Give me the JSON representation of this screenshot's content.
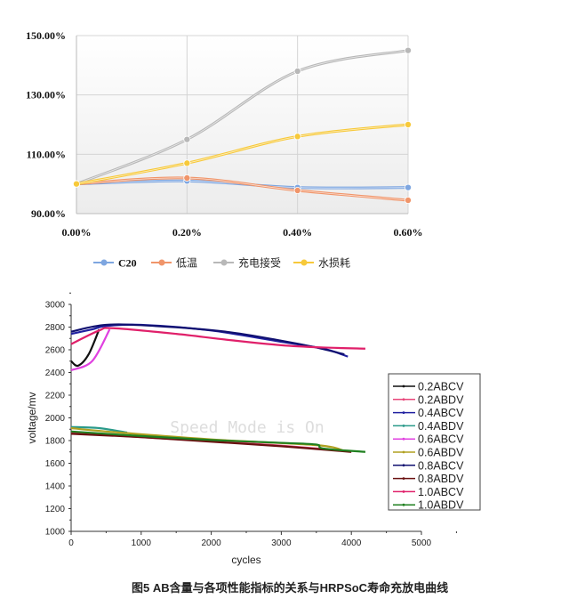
{
  "chart_data": [
    {
      "type": "line",
      "categories": [
        "0.00%",
        "0.20%",
        "0.40%",
        "0.60%"
      ],
      "yticks": [
        "90.00%",
        "110.00%",
        "130.00%",
        "150.00%"
      ],
      "ylim": [
        90,
        150
      ],
      "grid": true,
      "legend_position": "bottom",
      "series": [
        {
          "name": "C20",
          "color": "#7ea6e0",
          "values": [
            100,
            101,
            98.8,
            98.8
          ]
        },
        {
          "name": "低温",
          "color": "#f0956a",
          "values": [
            100,
            102,
            97.8,
            94.5
          ]
        },
        {
          "name": "充电接受",
          "color": "#b8b8b8",
          "values": [
            100,
            115,
            138,
            145
          ]
        },
        {
          "name": "水损耗",
          "color": "#f7c93a",
          "values": [
            100,
            107,
            116,
            120
          ]
        }
      ]
    },
    {
      "type": "line",
      "xlabel": "cycles",
      "ylabel": "voltage/mv",
      "xlim": [
        0,
        5000
      ],
      "ylim": [
        1000,
        3000
      ],
      "xticks": [
        "0",
        "1000",
        "2000",
        "3000",
        "4000",
        "5000"
      ],
      "yticks": [
        "1000",
        "1200",
        "1400",
        "1600",
        "1800",
        "2000",
        "2200",
        "2400",
        "2600",
        "2800",
        "3000"
      ],
      "legend_position": "right",
      "watermark": "Speed Mode is On",
      "series": [
        {
          "name": "0.2ABCV",
          "color": "#111111",
          "points": [
            [
              0,
              2500
            ],
            [
              100,
              2460
            ],
            [
              250,
              2560
            ],
            [
              400,
              2780
            ]
          ]
        },
        {
          "name": "0.2ABDV",
          "color": "#e8457a",
          "points": [
            [
              0,
              1870
            ],
            [
              1000,
              1830
            ],
            [
              2000,
              1795
            ],
            [
              3000,
              1755
            ],
            [
              3900,
              1710
            ]
          ]
        },
        {
          "name": "0.4ABCV",
          "color": "#2020a0",
          "points": [
            [
              0,
              2740
            ],
            [
              300,
              2780
            ],
            [
              500,
              2810
            ],
            [
              1000,
              2820
            ],
            [
              2000,
              2770
            ],
            [
              3000,
              2670
            ],
            [
              3600,
              2610
            ],
            [
              3950,
              2540
            ]
          ]
        },
        {
          "name": "0.4ABDV",
          "color": "#2a9a8a",
          "points": [
            [
              0,
              1920
            ],
            [
              400,
              1910
            ],
            [
              800,
              1870
            ]
          ]
        },
        {
          "name": "0.6ABCV",
          "color": "#e040e0",
          "points": [
            [
              0,
              2420
            ],
            [
              300,
              2500
            ],
            [
              550,
              2780
            ]
          ]
        },
        {
          "name": "0.6ABDV",
          "color": "#b0a020",
          "points": [
            [
              0,
              1910
            ],
            [
              500,
              1880
            ],
            [
              2000,
              1810
            ],
            [
              3500,
              1760
            ],
            [
              3900,
              1710
            ]
          ]
        },
        {
          "name": "0.8ABCV",
          "color": "#101070",
          "points": [
            [
              0,
              2760
            ],
            [
              500,
              2820
            ],
            [
              1200,
              2810
            ],
            [
              2200,
              2760
            ],
            [
              3000,
              2680
            ],
            [
              3500,
              2620
            ],
            [
              3900,
              2560
            ]
          ]
        },
        {
          "name": "0.8ABDV",
          "color": "#6a1010",
          "points": [
            [
              0,
              1860
            ],
            [
              1000,
              1830
            ],
            [
              2000,
              1790
            ],
            [
              3000,
              1750
            ],
            [
              4000,
              1700
            ]
          ]
        },
        {
          "name": "1.0ABCV",
          "color": "#e0206a",
          "points": [
            [
              0,
              2650
            ],
            [
              400,
              2770
            ],
            [
              600,
              2790
            ],
            [
              1500,
              2740
            ],
            [
              2200,
              2690
            ],
            [
              3000,
              2640
            ],
            [
              3600,
              2620
            ],
            [
              4200,
              2610
            ]
          ]
        },
        {
          "name": "1.0ABDV",
          "color": "#208020",
          "points": [
            [
              0,
              1880
            ],
            [
              1000,
              1840
            ],
            [
              2000,
              1805
            ],
            [
              3000,
              1780
            ],
            [
              3500,
              1765
            ],
            [
              3600,
              1730
            ],
            [
              4200,
              1700
            ]
          ]
        }
      ]
    }
  ],
  "caption": "图5 AB含量与各项性能指标的关系与HRPSoC寿命充放电曲线"
}
